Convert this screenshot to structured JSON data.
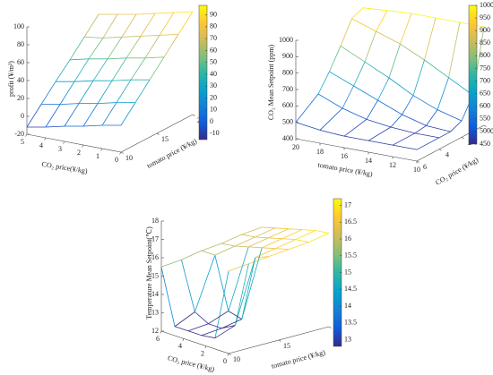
{
  "colormap": [
    "#352a87",
    "#0f5cdd",
    "#1481d6",
    "#06a4ca",
    "#2eb7a4",
    "#87bf77",
    "#d1bb59",
    "#fec832",
    "#f9fb0e"
  ],
  "chart_data": [
    {
      "type": "surface3d",
      "xlabel": "CO₂ price(¥/kg)",
      "ylabel": "tomato price (¥/kg)",
      "zlabel": "profit (¥/m²)",
      "x": [
        0,
        1,
        2,
        3,
        4,
        5
      ],
      "y": [
        10,
        12,
        14,
        16,
        18,
        20
      ],
      "z": [
        [
          10,
          6,
          1,
          -3,
          -8,
          -12
        ],
        [
          27,
          23,
          18,
          14,
          9,
          5
        ],
        [
          44,
          40,
          35,
          31,
          26,
          22
        ],
        [
          61,
          56,
          52,
          47,
          43,
          38
        ],
        [
          78,
          73,
          68,
          63,
          58,
          55
        ],
        [
          95,
          90,
          85,
          80,
          76,
          72
        ]
      ],
      "xlim": [
        0,
        5
      ],
      "xticks": [
        0,
        1,
        2,
        3,
        4,
        5
      ],
      "ylim": [
        10,
        20
      ],
      "yticks": [
        10,
        15,
        20
      ],
      "zlim": [
        -20,
        100
      ],
      "zticks": [
        -20,
        0,
        20,
        40,
        60,
        80,
        100
      ],
      "clim": [
        -15,
        98
      ],
      "cticks": [
        -10,
        0,
        10,
        20,
        30,
        40,
        50,
        60,
        70,
        80,
        90
      ]
    },
    {
      "type": "surface3d",
      "xlabel": "tomato price (¥/kg)",
      "ylabel": "CO₂ price (¥/kg)",
      "zlabel": "CO₂ Mean Setpoint (ppm)",
      "x": [
        10,
        12,
        14,
        16,
        18,
        20
      ],
      "y": [
        0,
        1,
        2,
        3,
        4,
        6
      ],
      "z": [
        [
          1000,
          1000,
          1000,
          1000,
          990,
          980
        ],
        [
          620,
          700,
          780,
          850,
          900,
          950
        ],
        [
          500,
          540,
          600,
          680,
          750,
          820
        ],
        [
          470,
          480,
          520,
          580,
          640,
          700
        ],
        [
          470,
          470,
          480,
          500,
          540,
          600
        ],
        [
          470,
          470,
          470,
          470,
          480,
          500
        ]
      ],
      "xlim": [
        10,
        20
      ],
      "xticks": [
        10,
        12,
        14,
        16,
        18,
        20
      ],
      "ylim": [
        0,
        6
      ],
      "yticks": [
        0,
        2,
        4,
        6
      ],
      "zlim": [
        400,
        1000
      ],
      "zticks": [
        400,
        500,
        600,
        700,
        800,
        900,
        1000
      ],
      "clim": [
        450,
        1000
      ],
      "cticks": [
        450,
        500,
        550,
        600,
        650,
        700,
        750,
        800,
        850,
        900,
        950,
        1000
      ]
    },
    {
      "type": "surface3d",
      "xlabel": "CO₂ price (¥/kg)",
      "ylabel": "tomato price (¥/kg)",
      "zlabel": "Temperature Mean Setpoint(℃)",
      "x": [
        0,
        1.2,
        2.4,
        3.6,
        4.8,
        6
      ],
      "y": [
        10,
        12,
        14,
        16,
        18,
        20
      ],
      "z": [
        [
          16.5,
          12.6,
          12.5,
          12.5,
          12.5,
          15.5
        ],
        [
          16.6,
          13.0,
          12.6,
          12.6,
          13.0,
          15.6
        ],
        [
          16.7,
          16.4,
          12.8,
          13.0,
          15.8,
          15.8
        ],
        [
          16.8,
          16.6,
          16.4,
          16.2,
          16.0,
          15.9
        ],
        [
          16.9,
          16.8,
          16.6,
          16.4,
          16.2,
          16.1
        ],
        [
          17.1,
          17.0,
          16.8,
          16.6,
          16.4,
          16.2
        ]
      ],
      "xlim": [
        0,
        6
      ],
      "xticks": [
        0,
        2,
        4,
        6
      ],
      "ylim": [
        10,
        20
      ],
      "yticks": [
        10,
        15,
        20
      ],
      "zlim": [
        12,
        18
      ],
      "zticks": [
        12,
        13,
        14,
        15,
        16,
        17,
        18
      ],
      "clim": [
        12.8,
        17.2
      ],
      "cticks": [
        13,
        13.5,
        14,
        14.5,
        15,
        15.5,
        16,
        16.5,
        17
      ]
    }
  ]
}
